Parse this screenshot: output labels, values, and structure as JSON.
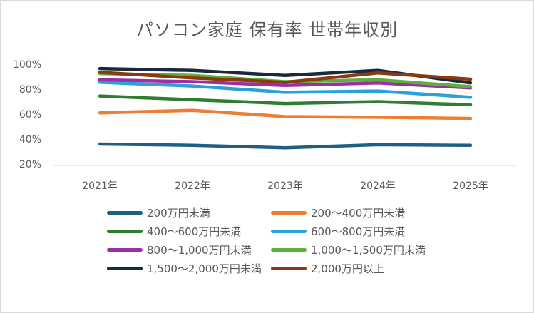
{
  "chart_data": {
    "type": "line",
    "title": "パソコン家庭 保有率 世帯年収別",
    "categories": [
      "2021年",
      "2022年",
      "2023年",
      "2024年",
      "2025年"
    ],
    "yticks": [
      "20%",
      "40%",
      "60%",
      "80%",
      "100%"
    ],
    "ylim": [
      20,
      100
    ],
    "grid": false,
    "legend_position": "bottom",
    "series": [
      {
        "name": "200万円未満",
        "color": "#1f5f86",
        "values": [
          36,
          35,
          33,
          35.5,
          35
        ]
      },
      {
        "name": "200～400万円未満",
        "color": "#ed7d31",
        "values": [
          61,
          63,
          58,
          57.5,
          56.5
        ]
      },
      {
        "name": "400～600万円未満",
        "color": "#2e7d32",
        "values": [
          74.5,
          71.5,
          68.5,
          70,
          67.5
        ]
      },
      {
        "name": "600～800万円未満",
        "color": "#2aa1dc",
        "values": [
          85.5,
          82.5,
          77.5,
          78.5,
          73.5
        ]
      },
      {
        "name": "800～1,000万円未満",
        "color": "#9c2fa6",
        "values": [
          87.5,
          86,
          83,
          85,
          81
        ]
      },
      {
        "name": "1,000～1,500万円未満",
        "color": "#5db03b",
        "values": [
          92.5,
          91,
          86,
          87.5,
          82
        ]
      },
      {
        "name": "1,500～2,000万円未満",
        "color": "#1b2a3a",
        "values": [
          96.5,
          95,
          91,
          95,
          85
        ]
      },
      {
        "name": "2,000万円以上",
        "color": "#8b3a10",
        "values": [
          93.5,
          89,
          85.5,
          93,
          88
        ]
      }
    ]
  }
}
